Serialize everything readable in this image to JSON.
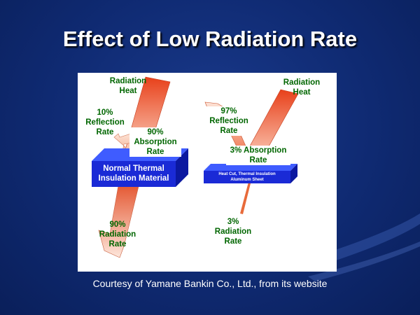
{
  "slide": {
    "title": "Effect of Low Radiation Rate",
    "caption": "Courtesy of Yamane Bankin Co., Ltd., from its website"
  },
  "diagram": {
    "left": {
      "incoming": "Radiation\nHeat",
      "reflection": "10%\nReflection\nRate",
      "absorption": "90%\nAbsorption\nRate",
      "material": "Normal Thermal\nInsulation Material",
      "emission": "90%\nRadiation\nRate"
    },
    "right": {
      "incoming": "Radiation\nHeat",
      "reflection": "97%\nReflection\nRate",
      "absorption": "3% Absorption\nRate",
      "material": "Heat Cut, Thermal Insulation\nAluminum Sheet",
      "emission": "3%\nRadiation\nRate"
    }
  },
  "colors": {
    "arrow_top": "#e8401a",
    "arrow_bottom": "#fdd5c2",
    "slab": "#1a2ad6",
    "label_text": "#006600"
  }
}
